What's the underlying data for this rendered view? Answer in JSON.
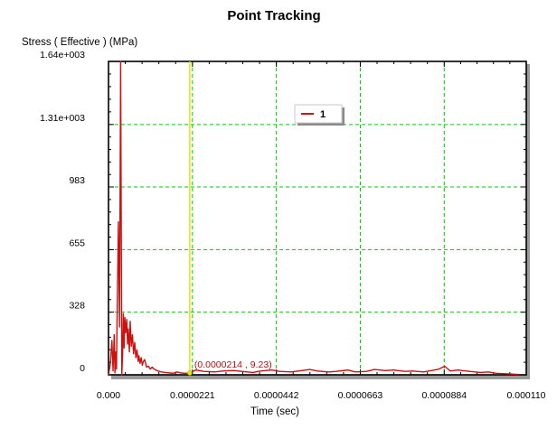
{
  "chart_data": {
    "type": "line",
    "title": "Point Tracking",
    "ylabel": "Stress ( Effective )  (MPa)",
    "xlabel": "Time (sec)",
    "xlim": [
      0,
      0.00011
    ],
    "ylim": [
      0,
      1640
    ],
    "x_ticks": [
      "0.000",
      "0.0000221",
      "0.0000442",
      "0.0000663",
      "0.0000884",
      "0.000110"
    ],
    "x_tick_values": [
      0,
      2.21e-05,
      4.42e-05,
      6.63e-05,
      8.84e-05,
      0.00011
    ],
    "y_ticks": [
      "0",
      "328",
      "655",
      "983",
      "1.31e+003",
      "1.64e+003"
    ],
    "y_tick_values": [
      0,
      328,
      655,
      983,
      1310,
      1640
    ],
    "grid": true,
    "legend_position": "top-center",
    "colors": {
      "series": "#cc1111",
      "grid": "#00cc00",
      "cursor": "#e6e600",
      "annotation": "#b01010"
    },
    "cursor": {
      "x": 2.14e-05,
      "label": "(0.0000214 , 9.23)"
    },
    "series": [
      {
        "name": "1",
        "x": [
          0,
          5e-07,
          9e-07,
          1.2e-06,
          1.5e-06,
          1.7e-06,
          1.9e-06,
          2.1e-06,
          2.3e-06,
          2.6e-06,
          2.9e-06,
          3.2e-06,
          3.5e-06,
          3.7e-06,
          3.9e-06,
          4.1e-06,
          4.3e-06,
          4.5e-06,
          4.8e-06,
          5e-06,
          5.2e-06,
          5.5e-06,
          5.7e-06,
          6e-06,
          6.3e-06,
          6.6e-06,
          6.9e-06,
          7.2e-06,
          7.5e-06,
          7.8e-06,
          8e-06,
          8.3e-06,
          8.6e-06,
          8.9e-06,
          9.2e-06,
          9.5e-06,
          9.8e-06,
          1e-05,
          1.05e-05,
          1.1e-05,
          1.15e-05,
          1.2e-05,
          1.25e-05,
          1.3e-05,
          1.4e-05,
          1.5e-05,
          1.6e-05,
          1.7e-05,
          1.8e-05,
          1.9e-05,
          2e-05,
          2.14e-05,
          2.3e-05,
          2.5e-05,
          2.8e-05,
          3e-05,
          3.3e-05,
          3.5e-05,
          3.8e-05,
          4e-05,
          4.3e-05,
          4.5e-05,
          4.8e-05,
          5e-05,
          5.3e-05,
          5.5e-05,
          5.8e-05,
          6e-05,
          6.3e-05,
          6.5e-05,
          6.8e-05,
          7e-05,
          7.3e-05,
          7.5e-05,
          7.8e-05,
          8e-05,
          8.3e-05,
          8.5e-05,
          8.7e-05,
          8.85e-05,
          9e-05,
          9.2e-05,
          9.5e-05,
          9.8e-05,
          0.0001,
          0.000102,
          0.000105,
          0.000108
        ],
        "y": [
          0,
          60,
          180,
          20,
          210,
          10,
          120,
          30,
          350,
          800,
          250,
          1640,
          0,
          100,
          320,
          140,
          300,
          220,
          290,
          160,
          240,
          120,
          280,
          150,
          210,
          110,
          170,
          90,
          130,
          70,
          100,
          60,
          90,
          50,
          70,
          80,
          60,
          40,
          45,
          30,
          40,
          30,
          25,
          20,
          15,
          12,
          10,
          8,
          15,
          10,
          8,
          9.23,
          25,
          18,
          15,
          20,
          22,
          18,
          12,
          20,
          25,
          18,
          15,
          20,
          28,
          20,
          15,
          18,
          25,
          15,
          18,
          28,
          22,
          25,
          18,
          20,
          15,
          22,
          30,
          45,
          20,
          25,
          18,
          12,
          15,
          8,
          5,
          2
        ]
      }
    ]
  }
}
